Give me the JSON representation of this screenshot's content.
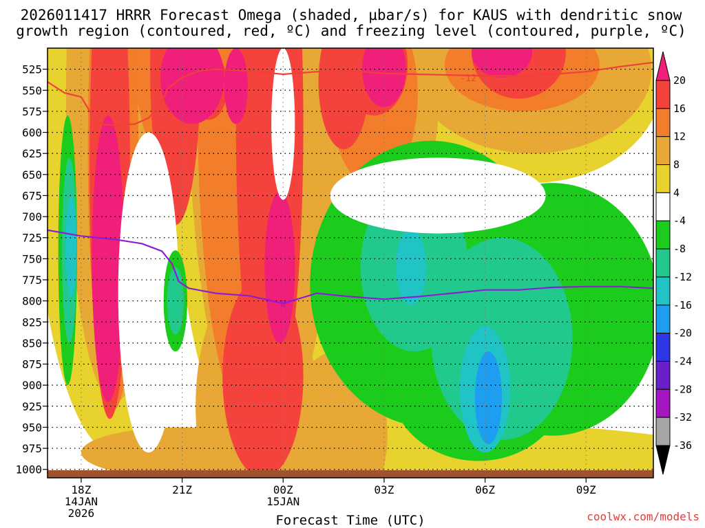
{
  "chart_data": {
    "type": "contour",
    "title_line1": "2026011417 HRRR Forecast Omega (shaded, µbar/s) for KAUS with dendritic snow",
    "title_line2": "growth region (contoured, red, ºC) and freezing level (contoured, purple, ºC)",
    "xlabel": "Forecast Time (UTC)",
    "watermark": "coolwx.com/models",
    "x_ticks": [
      {
        "hour": 1,
        "line1": "18Z",
        "line2": "14JAN",
        "line3": "2026"
      },
      {
        "hour": 4,
        "line1": "21Z",
        "line2": "",
        "line3": ""
      },
      {
        "hour": 7,
        "line1": "00Z",
        "line2": "15JAN",
        "line3": ""
      },
      {
        "hour": 10,
        "line1": "03Z",
        "line2": "",
        "line3": ""
      },
      {
        "hour": 13,
        "line1": "06Z",
        "line2": "",
        "line3": ""
      },
      {
        "hour": 16,
        "line1": "09Z",
        "line2": "",
        "line3": ""
      }
    ],
    "x_range_hours": [
      0,
      18
    ],
    "y_ticks": [
      525,
      550,
      575,
      600,
      625,
      650,
      675,
      700,
      725,
      750,
      775,
      800,
      825,
      850,
      875,
      900,
      925,
      950,
      975,
      1000
    ],
    "y_range_mb": [
      500,
      1010
    ],
    "colorbar": {
      "labels": [
        "20",
        "16",
        "12",
        "8",
        "4",
        "-4",
        "-8",
        "-12",
        "-16",
        "-20",
        "-24",
        "-28",
        "-32",
        "-36"
      ],
      "colors": [
        "#f01f7a",
        "#f4423c",
        "#f27d2a",
        "#e8a835",
        "#e8d22e",
        "#ffffff",
        "#1ccc1c",
        "#22c98c",
        "#20c4c4",
        "#1e9ef0",
        "#2e37e6",
        "#6a1fc9",
        "#a516c2",
        "#a6a6a6",
        "#000000"
      ]
    },
    "dgz_label": "-12",
    "dgz_line_mb": [
      [
        0.0,
        540
      ],
      [
        0.5,
        553
      ],
      [
        1.0,
        558
      ],
      [
        1.3,
        578
      ],
      [
        1.6,
        590
      ],
      [
        2.0,
        592
      ],
      [
        2.6,
        590
      ],
      [
        3.0,
        583
      ],
      [
        3.3,
        570
      ],
      [
        3.6,
        547
      ],
      [
        4.0,
        535
      ],
      [
        4.5,
        527
      ],
      [
        5.0,
        525
      ],
      [
        6.0,
        527
      ],
      [
        7.0,
        531
      ],
      [
        8.0,
        528
      ],
      [
        9.0,
        527
      ],
      [
        10.0,
        530
      ],
      [
        11.0,
        531
      ],
      [
        12.0,
        532
      ],
      [
        13.0,
        533
      ],
      [
        14.0,
        533
      ],
      [
        15.0,
        531
      ],
      [
        16.0,
        528
      ],
      [
        17.0,
        522
      ],
      [
        18.0,
        517
      ]
    ],
    "freezing_label": "0",
    "freezing_line_mb": [
      [
        0.0,
        716
      ],
      [
        1.0,
        723
      ],
      [
        2.0,
        727
      ],
      [
        2.8,
        732
      ],
      [
        3.4,
        741
      ],
      [
        3.7,
        756
      ],
      [
        3.9,
        777
      ],
      [
        4.2,
        785
      ],
      [
        5.0,
        791
      ],
      [
        6.0,
        794
      ],
      [
        7.0,
        803
      ],
      [
        7.5,
        797
      ],
      [
        8.0,
        791
      ],
      [
        9.0,
        795
      ],
      [
        10.0,
        798
      ],
      [
        11.0,
        795
      ],
      [
        12.0,
        791
      ],
      [
        13.0,
        787
      ],
      [
        14.0,
        787
      ],
      [
        15.0,
        784
      ],
      [
        16.0,
        783
      ],
      [
        17.0,
        783
      ],
      [
        18.0,
        785
      ]
    ],
    "series": [
      {
        "name": "omega_4",
        "color": "#e8d22e",
        "centers": [
          [
            2.0,
            560,
            2.5,
            420
          ],
          [
            6.4,
            520,
            2.8,
            480
          ],
          [
            14.4,
            535,
            3.9,
            125
          ],
          [
            9.8,
            710,
            4.4,
            300
          ],
          [
            12.0,
            1000,
            9.0,
            55
          ]
        ]
      },
      {
        "name": "omega_8",
        "color": "#e8a835",
        "centers": [
          [
            2.0,
            560,
            1.45,
            360
          ],
          [
            6.4,
            510,
            2.25,
            470
          ],
          [
            14.4,
            525,
            3.55,
            100
          ],
          [
            9.4,
            580,
            2.2,
            120
          ],
          [
            4.0,
            980,
            3.0,
            30
          ],
          [
            6.2,
            925,
            1.8,
            160
          ],
          [
            8.6,
            960,
            1.5,
            100
          ]
        ]
      },
      {
        "name": "omega_12",
        "color": "#f27d2a",
        "centers": [
          [
            1.95,
            620,
            0.75,
            310
          ],
          [
            3.6,
            470,
            1.1,
            170
          ],
          [
            5.95,
            560,
            1.5,
            380
          ],
          [
            9.7,
            555,
            1.3,
            110
          ],
          [
            14.1,
            520,
            2.3,
            55
          ]
        ]
      },
      {
        "name": "omega_16",
        "color": "#f4423c",
        "centers": [
          [
            1.85,
            640,
            0.6,
            300
          ],
          [
            3.8,
            520,
            0.75,
            190
          ],
          [
            6.6,
            590,
            1.0,
            350
          ],
          [
            8.8,
            540,
            0.75,
            80
          ],
          [
            6.4,
            890,
            1.2,
            120
          ],
          [
            9.7,
            520,
            1.0,
            60
          ],
          [
            14.0,
            505,
            1.4,
            55
          ],
          [
            4.8,
            545,
            0.55,
            40
          ]
        ]
      },
      {
        "name": "omega_20",
        "color": "#f01f7a",
        "centers": [
          [
            1.8,
            750,
            0.48,
            170
          ],
          [
            4.3,
            535,
            0.95,
            55
          ],
          [
            5.6,
            545,
            0.35,
            45
          ],
          [
            6.9,
            760,
            0.45,
            90
          ],
          [
            10.0,
            525,
            0.65,
            45
          ],
          [
            13.5,
            505,
            0.9,
            30
          ]
        ]
      },
      {
        "name": "omega_neg4_left",
        "color": "#1ccc1c",
        "centers": [
          [
            0.6,
            740,
            0.28,
            160
          ],
          [
            3.8,
            800,
            0.35,
            60
          ]
        ]
      },
      {
        "name": "omega_neg4_right",
        "color": "#1ccc1c",
        "centers": [
          [
            11.4,
            780,
            3.6,
            170
          ],
          [
            15.0,
            810,
            3.2,
            150
          ],
          [
            12.8,
            900,
            2.6,
            90
          ]
        ]
      },
      {
        "name": "omega_neg8",
        "color": "#22c98c",
        "centers": [
          [
            0.65,
            740,
            0.22,
            110
          ],
          [
            3.8,
            800,
            0.25,
            40
          ],
          [
            10.9,
            760,
            1.6,
            100
          ],
          [
            13.5,
            845,
            2.1,
            120
          ]
        ]
      },
      {
        "name": "omega_neg12",
        "color": "#20c4c4",
        "centers": [
          [
            0.7,
            735,
            0.16,
            60
          ],
          [
            10.8,
            760,
            0.45,
            45
          ],
          [
            13.0,
            905,
            0.75,
            75
          ]
        ]
      },
      {
        "name": "omega_neg16",
        "color": "#1e9ef0",
        "centers": [
          [
            13.1,
            915,
            0.4,
            55
          ]
        ]
      }
    ],
    "white_gaps": [
      [
        3.0,
        790,
        0.9,
        190
      ],
      [
        7.0,
        590,
        0.35,
        90
      ],
      [
        11.6,
        675,
        3.2,
        45
      ]
    ],
    "ground_color": "#a0522d"
  }
}
